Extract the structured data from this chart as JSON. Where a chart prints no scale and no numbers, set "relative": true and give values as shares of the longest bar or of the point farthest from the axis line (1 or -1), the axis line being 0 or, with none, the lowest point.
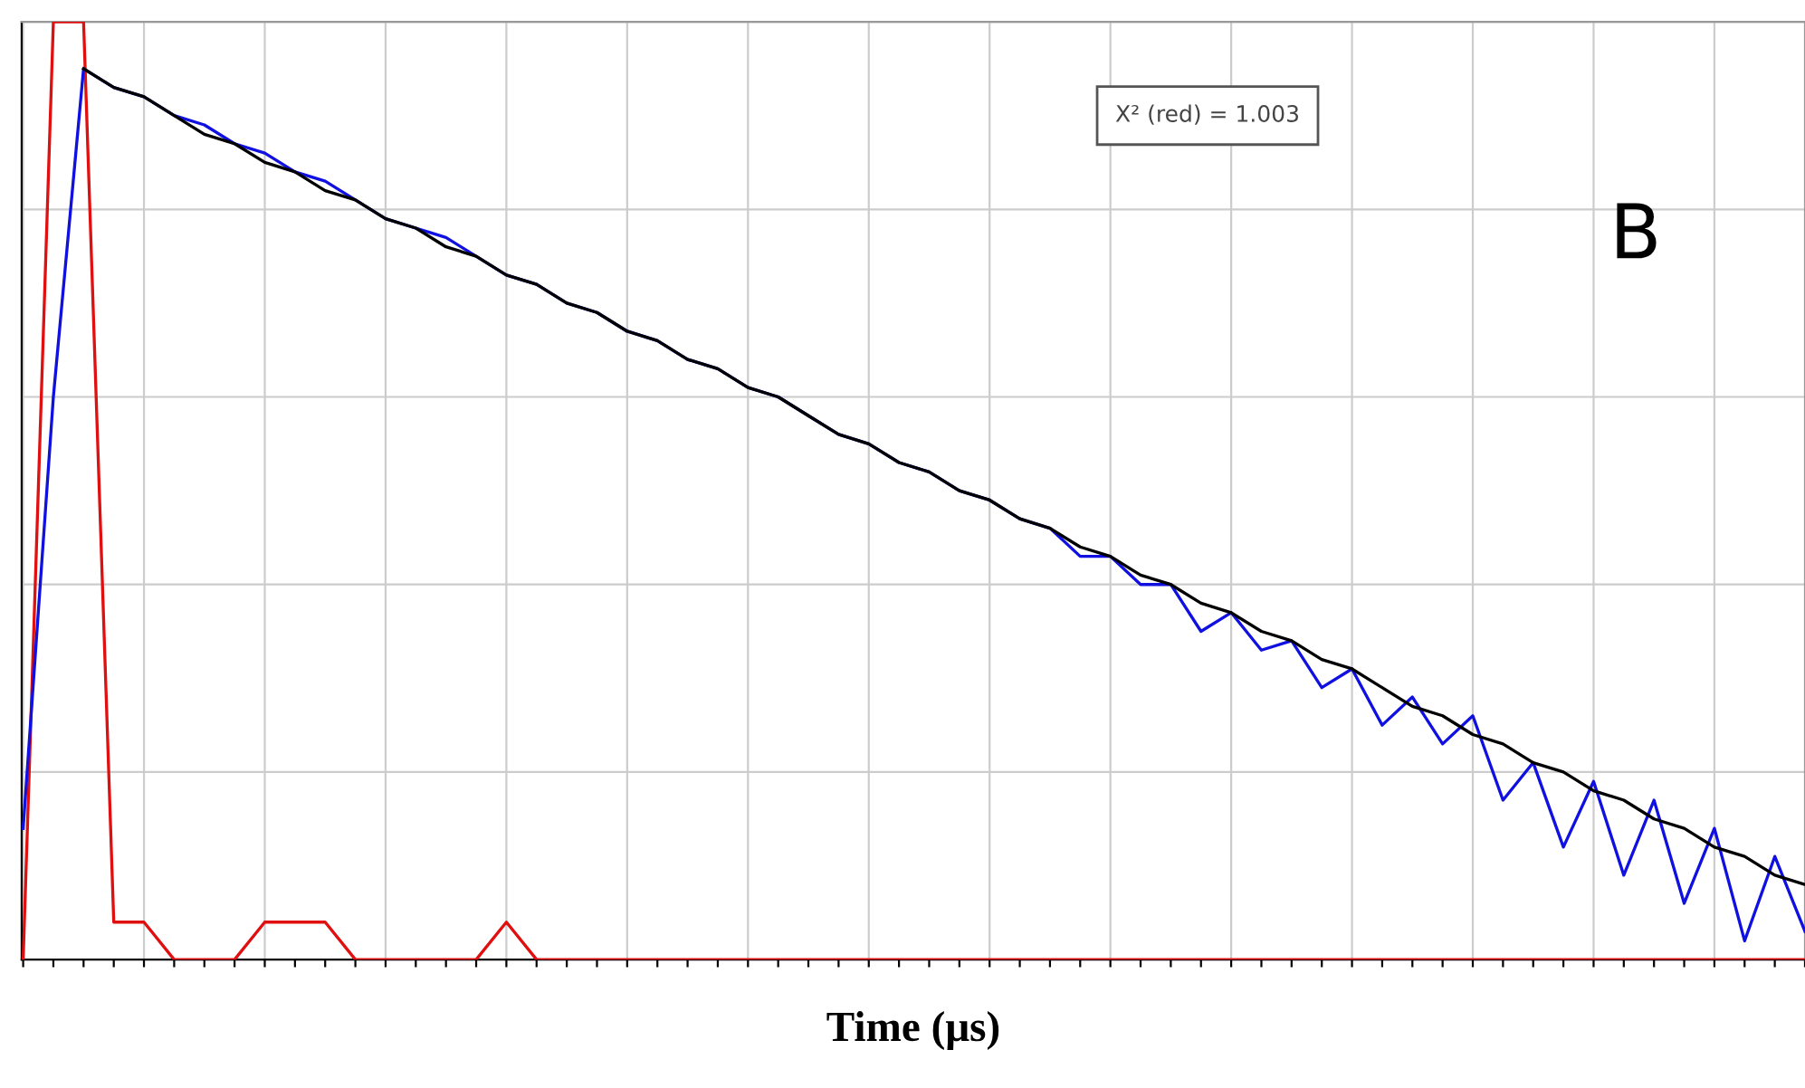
{
  "chart_data": {
    "type": "line",
    "relative": true,
    "xlabel": "Time (μs)",
    "grid": true,
    "legend": false,
    "annotations": [
      "X² (red) = 1.003",
      "B"
    ],
    "categories": [
      null,
      null,
      null,
      null,
      null,
      null,
      null,
      null,
      null,
      null,
      null,
      null,
      null,
      null,
      null,
      null,
      null,
      null,
      null,
      null,
      null,
      null,
      null,
      null,
      null,
      null,
      null,
      null,
      null,
      null,
      null,
      null,
      null,
      null,
      null,
      null,
      null,
      null,
      null,
      null,
      null,
      null,
      null,
      null,
      null,
      null,
      null,
      null,
      null,
      null,
      null,
      null,
      null,
      null,
      null,
      null,
      null,
      null,
      null,
      null
    ],
    "series": [
      {
        "color": "#e01010",
        "values": [
          0,
          1.0,
          1.0,
          0.04,
          0.04,
          0,
          0,
          0,
          0.04,
          0.04,
          0.04,
          0,
          0,
          0,
          0,
          0,
          0.04,
          0,
          0,
          0,
          0,
          0,
          0,
          0,
          0,
          0,
          0,
          0,
          0,
          0,
          0,
          0,
          0,
          0,
          0,
          0,
          0,
          0,
          0,
          0,
          0,
          0,
          0,
          0,
          0,
          0,
          0,
          0,
          0,
          0,
          0,
          0,
          0,
          0,
          0,
          0,
          0,
          0,
          0,
          0
        ]
      },
      {
        "color": "#1010e0",
        "values": [
          0.14,
          0.6,
          0.95,
          0.93,
          0.92,
          0.9,
          0.89,
          0.87,
          0.86,
          0.84,
          0.83,
          0.81,
          0.79,
          0.78,
          0.77,
          0.75,
          0.73,
          0.72,
          0.7,
          0.69,
          0.67,
          0.66,
          0.64,
          0.63,
          0.61,
          0.6,
          0.58,
          0.56,
          0.55,
          0.53,
          0.52,
          0.5,
          0.49,
          0.47,
          0.46,
          0.43,
          0.43,
          0.4,
          0.4,
          0.35,
          0.37,
          0.33,
          0.34,
          0.29,
          0.31,
          0.25,
          0.28,
          0.23,
          0.26,
          0.17,
          0.21,
          0.12,
          0.19,
          0.09,
          0.17,
          0.06,
          0.14,
          0.02,
          0.11,
          0.03
        ]
      },
      {
        "color": "#000000",
        "values": [
          null,
          null,
          0.95,
          0.93,
          0.92,
          0.9,
          0.88,
          0.87,
          0.85,
          0.84,
          0.82,
          0.81,
          0.79,
          0.78,
          0.76,
          0.75,
          0.73,
          0.72,
          0.7,
          0.69,
          0.67,
          0.66,
          0.64,
          0.63,
          0.61,
          0.6,
          0.58,
          0.56,
          0.55,
          0.53,
          0.52,
          0.5,
          0.49,
          0.47,
          0.46,
          0.44,
          0.43,
          0.41,
          0.4,
          0.38,
          0.37,
          0.35,
          0.34,
          0.32,
          0.31,
          0.29,
          0.27,
          0.26,
          0.24,
          0.23,
          0.21,
          0.2,
          0.18,
          0.17,
          0.15,
          0.14,
          0.12,
          0.11,
          0.09,
          0.08
        ]
      }
    ]
  }
}
